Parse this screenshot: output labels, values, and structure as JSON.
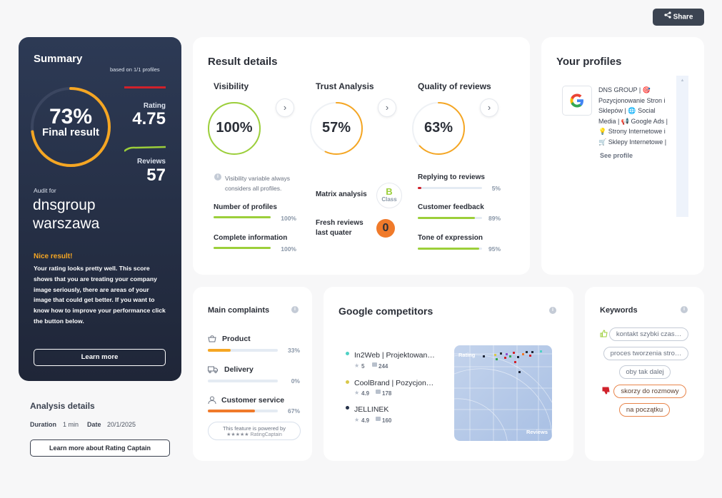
{
  "header": {
    "share_label": "Share"
  },
  "summary": {
    "title": "Summary",
    "based_on": "based on 1/1 profiles",
    "final_percent": "73%",
    "final_label": "Final result",
    "final_value": 0.73,
    "rating_label": "Rating",
    "rating_value": "4.75",
    "reviews_label": "Reviews",
    "reviews_value": "57",
    "audit_for_label": "Audit for",
    "company_line1": "dnsgroup",
    "company_line2": "warszawa",
    "nice_title": "Nice result!",
    "nice_text": "Your rating looks pretty well. This score shows that you are treating your company image seriously, there are areas of your image that could get better. If you want to know how to improve your performance click the button below.",
    "learn_more": "Learn more",
    "colors": {
      "bg": "#253149",
      "accent": "#f5a623",
      "rating_line": "#d0212b",
      "reviews_line": "#9ccf3a"
    }
  },
  "analysis": {
    "title": "Analysis details",
    "duration_label": "Duration",
    "duration_value": "1 min",
    "date_label": "Date",
    "date_value": "20/1/2025",
    "button": "Learn more about Rating Captain"
  },
  "result_details": {
    "title": "Result details",
    "visibility": {
      "title": "Visibility",
      "percent": "100%",
      "value": 1.0,
      "note": "Visibility variable always considers all profiles.",
      "items": [
        {
          "label": "Number of profiles",
          "percent": "100%",
          "value": 1.0,
          "color": "#9ccf3a"
        },
        {
          "label": "Complete information",
          "percent": "100%",
          "value": 1.0,
          "color": "#9ccf3a"
        }
      ]
    },
    "trust": {
      "title": "Trust Analysis",
      "percent": "57%",
      "value": 0.57,
      "matrix_label": "Matrix analysis",
      "matrix_grade": "B",
      "matrix_class": "Class",
      "fresh_label_1": "Fresh reviews",
      "fresh_label_2": "last quater",
      "fresh_value": "0"
    },
    "quality": {
      "title": "Quality of reviews",
      "percent": "63%",
      "value": 0.63,
      "items": [
        {
          "label": "Replying to reviews",
          "percent": "5%",
          "value": 0.05,
          "color": "#d0212b"
        },
        {
          "label": "Customer feedback",
          "percent": "89%",
          "value": 0.89,
          "color": "#9ccf3a"
        },
        {
          "label": "Tone of expression",
          "percent": "95%",
          "value": 0.95,
          "color": "#9ccf3a"
        }
      ]
    }
  },
  "profiles": {
    "title": "Your profiles",
    "lines": [
      "DNS GROUP | 🎯",
      "Pozycjonowanie Stron i",
      "Sklepów | 🌐 Social",
      "Media | 📢 Google Ads |",
      "💡 Strony Internetowe i",
      "🛒 Sklepy Internetowe |"
    ],
    "see_profile": "See profile"
  },
  "complaints": {
    "title": "Main complaints",
    "items": [
      {
        "label": "Product",
        "percent": "33%",
        "value": 0.33,
        "color": "#f5a623",
        "icon": "basket-icon"
      },
      {
        "label": "Delivery",
        "percent": "0%",
        "value": 0.0,
        "color": "#f5a623",
        "icon": "truck-icon"
      },
      {
        "label": "Customer service",
        "percent": "67%",
        "value": 0.67,
        "color": "#f07a2a",
        "icon": "person-icon"
      }
    ],
    "powered_line1": "This feature is powered by",
    "powered_line2": "★★★★★ RatingCaptain"
  },
  "competitors": {
    "title": "Google competitors",
    "items": [
      {
        "name": "In2Web | Projektowan…",
        "rating": "5",
        "reviews": "244",
        "dot": "#4fd1c5"
      },
      {
        "name": "CoolBrand | Pozycjon…",
        "rating": "4.9",
        "reviews": "178",
        "dot": "#d9c84a"
      },
      {
        "name": "JELLINEK",
        "rating": "4.9",
        "reviews": "160",
        "dot": "#253149"
      }
    ],
    "map_rating_label": "Rating",
    "map_reviews_label": "Reviews"
  },
  "keywords": {
    "title": "Keywords",
    "positive": [
      "kontakt szybki czas…",
      "proces tworzenia stro…",
      "oby tak dalej"
    ],
    "negative": [
      "skorzy do rozmowy",
      "na początku"
    ]
  }
}
